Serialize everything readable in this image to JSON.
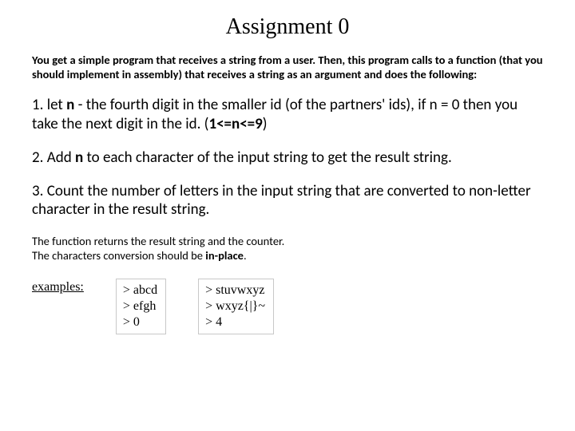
{
  "title": "Assignment 0",
  "intro": "You get a simple program that receives a string from a user. Then, this program calls to a function (that you should implement in assembly) that receives a string as an argument and does the following:",
  "step1_pre": "1. let ",
  "step1_n": "n",
  "step1_mid": " - the fourth digit in the smaller id (of the partners' ids), if n = 0 then you take the next digit in the id. (",
  "step1_range": "1<=n<=9",
  "step1_post": ")",
  "step2_pre": "2. Add ",
  "step2_n": "n",
  "step2_post": " to each character of the input string to get the result string.",
  "step3": "3. Count the number of letters in the input string that are converted to non-letter character in the result string.",
  "foot_line1": "The function returns the result string and the counter.",
  "foot_line2_pre": "The characters conversion should be ",
  "foot_bold": "in-place",
  "foot_line2_post": ".",
  "examples_label": "examples:",
  "ex1": {
    "l1": "> abcd",
    "l2": "> efgh",
    "l3": "> 0"
  },
  "ex2": {
    "l1": "> stuvwxyz",
    "l2": "> wxyz{|}~",
    "l3": "> 4"
  }
}
